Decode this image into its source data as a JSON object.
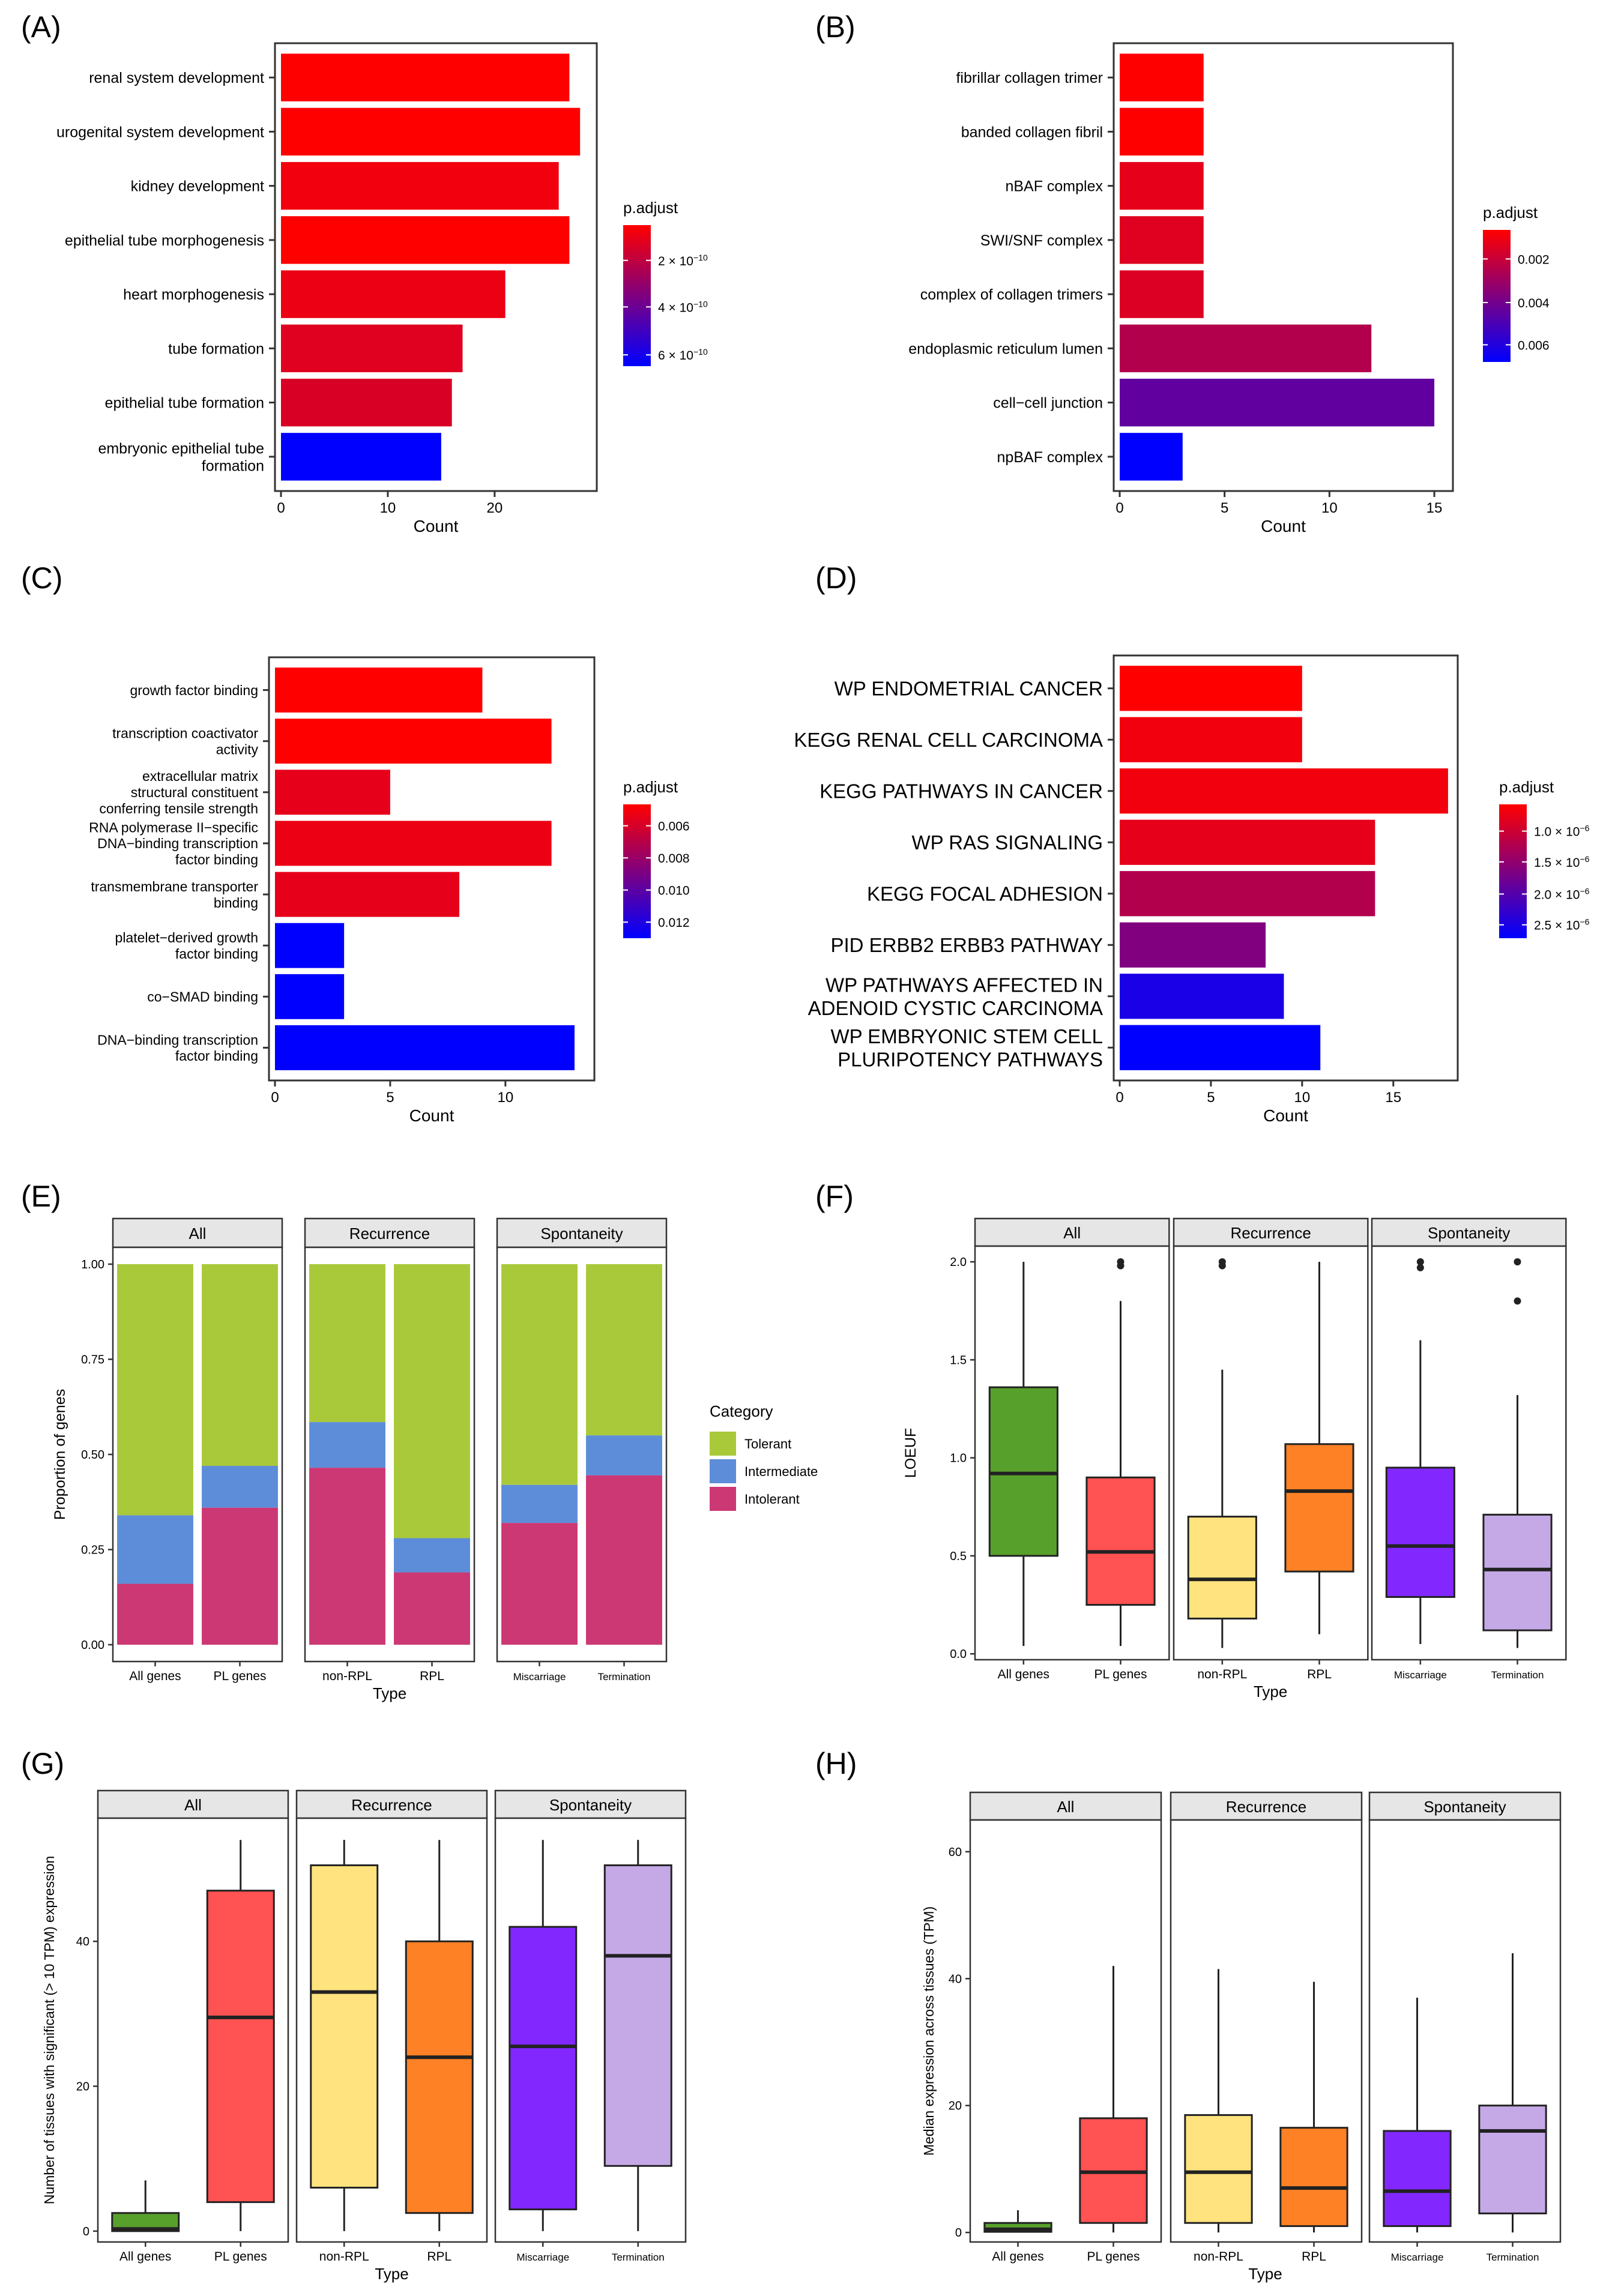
{
  "colors": {
    "grad_top": "#ff0000",
    "grad_bottom": "#0000ff",
    "tolerant": "#a9c93a",
    "intermediate": "#5d8dd8",
    "intolerant": "#cc3874",
    "all_genes": "#58a02c",
    "pl_genes": "#ff5252",
    "non_rpl": "#ffe37e",
    "rpl": "#ff8126",
    "miscarriage": "#8228ff",
    "termination": "#c5a9e7",
    "strip": "#e6e6e6",
    "axis": "#333333"
  },
  "chart_data": [
    {
      "id": "A",
      "panel_label": "(A)",
      "type": "bar",
      "orientation": "horizontal",
      "categories": [
        [
          "renal system development"
        ],
        [
          "urogenital system development"
        ],
        [
          "kidney development"
        ],
        [
          "epithelial tube morphogenesis"
        ],
        [
          "heart morphogenesis"
        ],
        [
          "tube formation"
        ],
        [
          "epithelial tube formation"
        ],
        [
          "embryonic epithelial tube",
          "formation"
        ]
      ],
      "values": [
        27,
        28,
        26,
        27,
        21,
        17,
        16,
        15
      ],
      "padj_color_frac": [
        0.0,
        0.0,
        0.05,
        0.0,
        0.08,
        0.12,
        0.15,
        1.0
      ],
      "xlim": [
        0,
        29
      ],
      "xticks": [
        0,
        10,
        20
      ],
      "xlabel": "Count",
      "legend": {
        "title": "p.adjust",
        "labels": [
          [
            "2 × 10",
            "−10"
          ],
          [
            "4 × 10",
            "−10"
          ],
          [
            "6 × 10",
            "−10"
          ]
        ],
        "label_frac": [
          0.25,
          0.58,
          0.92
        ]
      },
      "label_size": 25
    },
    {
      "id": "B",
      "panel_label": "(B)",
      "type": "bar",
      "orientation": "horizontal",
      "categories": [
        [
          "fibrillar collagen trimer"
        ],
        [
          "banded collagen fibril"
        ],
        [
          "nBAF complex"
        ],
        [
          "SWI/SNF complex"
        ],
        [
          "complex of collagen trimers"
        ],
        [
          "endoplasmic reticulum lumen"
        ],
        [
          "cell−cell junction"
        ],
        [
          "npBAF complex"
        ]
      ],
      "values": [
        4,
        4,
        4,
        4,
        4,
        12,
        15,
        3
      ],
      "padj_color_frac": [
        0.0,
        0.0,
        0.1,
        0.12,
        0.14,
        0.3,
        0.62,
        1.0
      ],
      "xlim": [
        0,
        15.6
      ],
      "xticks": [
        0,
        5,
        10,
        15
      ],
      "xlabel": "Count",
      "legend": {
        "title": "p.adjust",
        "labels": [
          [
            "0.002"
          ],
          [
            "0.004"
          ],
          [
            "0.006"
          ]
        ],
        "label_frac": [
          0.22,
          0.55,
          0.87
        ]
      },
      "label_size": 25
    },
    {
      "id": "C",
      "panel_label": "(C)",
      "type": "bar",
      "orientation": "horizontal",
      "categories": [
        [
          "growth factor binding"
        ],
        [
          "transcription coactivator",
          "activity"
        ],
        [
          "extracellular matrix",
          "structural constituent",
          "conferring tensile strength"
        ],
        [
          "RNA polymerase II−specific",
          "DNA−binding transcription",
          "factor binding"
        ],
        [
          "transmembrane transporter",
          "binding"
        ],
        [
          "platelet−derived growth",
          "factor binding"
        ],
        [
          "co−SMAD binding"
        ],
        [
          "DNA−binding transcription",
          "factor binding"
        ]
      ],
      "values": [
        9,
        12,
        5,
        12,
        8,
        3,
        3,
        13
      ],
      "padj_color_frac": [
        0.0,
        0.0,
        0.1,
        0.08,
        0.1,
        1.0,
        1.0,
        1.0
      ],
      "xlim": [
        0,
        13.6
      ],
      "xticks": [
        0,
        5,
        10
      ],
      "xlabel": "Count",
      "legend": {
        "title": "p.adjust",
        "labels": [
          [
            "0.006"
          ],
          [
            "0.008"
          ],
          [
            "0.010"
          ],
          [
            "0.012"
          ]
        ],
        "label_frac": [
          0.16,
          0.4,
          0.64,
          0.88
        ]
      },
      "label_size": 23
    },
    {
      "id": "D",
      "panel_label": "(D)",
      "type": "bar",
      "orientation": "horizontal",
      "categories": [
        [
          "WP ENDOMETRIAL CANCER"
        ],
        [
          "KEGG RENAL CELL CARCINOMA"
        ],
        [
          "KEGG PATHWAYS IN CANCER"
        ],
        [
          "WP RAS SIGNALING"
        ],
        [
          "KEGG FOCAL ADHESION"
        ],
        [
          "PID ERBB2 ERBB3 PATHWAY"
        ],
        [
          "WP PATHWAYS AFFECTED IN",
          "ADENOID CYSTIC CARCINOMA"
        ],
        [
          "WP EMBRYONIC STEM CELL",
          "PLURIPOTENCY PATHWAYS"
        ]
      ],
      "values": [
        10,
        10,
        18,
        14,
        14,
        8,
        9,
        11
      ],
      "padj_color_frac": [
        0.0,
        0.05,
        0.05,
        0.1,
        0.3,
        0.5,
        0.9,
        1.0
      ],
      "xlim": [
        0,
        18.2
      ],
      "xticks": [
        0,
        5,
        10,
        15
      ],
      "xlabel": "Count",
      "legend": {
        "title": "p.adjust",
        "labels": [
          [
            "1.0 × 10",
            "−6"
          ],
          [
            "1.5 × 10",
            "−6"
          ],
          [
            "2.0 × 10",
            "−6"
          ],
          [
            "2.5 × 10",
            "−6"
          ]
        ],
        "label_frac": [
          0.2,
          0.43,
          0.67,
          0.9
        ]
      },
      "label_size": 33
    },
    {
      "id": "E",
      "panel_label": "(E)",
      "type": "stacked_bar",
      "facets": [
        {
          "strip": "All",
          "groups": [
            "All genes",
            "PL genes"
          ],
          "intolerant": [
            0.16,
            0.36
          ],
          "intermediate": [
            0.18,
            0.11
          ]
        },
        {
          "strip": "Recurrence",
          "groups": [
            "non-RPL",
            "RPL"
          ],
          "intolerant": [
            0.465,
            0.19
          ],
          "intermediate": [
            0.12,
            0.09
          ]
        },
        {
          "strip": "Spontaneity",
          "groups": [
            "Miscarriage",
            "Termination"
          ],
          "intolerant": [
            0.32,
            0.445
          ],
          "intermediate": [
            0.1,
            0.105
          ]
        }
      ],
      "ylim": [
        0,
        1
      ],
      "yticks": [
        "0.00",
        "0.25",
        "0.50",
        "0.75",
        "1.00"
      ],
      "ylabel": "Proportion of genes",
      "xlabel": "Type",
      "legend": {
        "title": "Category",
        "items": [
          "Tolerant",
          "Intermediate",
          "Intolerant"
        ]
      }
    },
    {
      "id": "F",
      "panel_label": "(F)",
      "type": "boxplot",
      "facets": [
        {
          "strip": "All",
          "groups": [
            "All genes",
            "PL genes"
          ],
          "boxes": [
            {
              "min": 0.04,
              "q1": 0.5,
              "median": 0.92,
              "q3": 1.36,
              "max": 2.0,
              "outliers": []
            },
            {
              "min": 0.04,
              "q1": 0.25,
              "median": 0.52,
              "q3": 0.9,
              "max": 1.8,
              "outliers": [
                1.98,
                2.0
              ]
            }
          ]
        },
        {
          "strip": "Recurrence",
          "groups": [
            "non-RPL",
            "RPL"
          ],
          "boxes": [
            {
              "min": 0.03,
              "q1": 0.18,
              "median": 0.38,
              "q3": 0.7,
              "max": 1.45,
              "outliers": [
                1.98,
                2.0
              ]
            },
            {
              "min": 0.1,
              "q1": 0.42,
              "median": 0.83,
              "q3": 1.07,
              "max": 2.0,
              "outliers": []
            }
          ]
        },
        {
          "strip": "Spontaneity",
          "groups": [
            "Miscarriage",
            "Termination"
          ],
          "boxes": [
            {
              "min": 0.05,
              "q1": 0.29,
              "median": 0.55,
              "q3": 0.95,
              "max": 1.6,
              "outliers": [
                1.97,
                2.0
              ]
            },
            {
              "min": 0.03,
              "q1": 0.12,
              "median": 0.43,
              "q3": 0.71,
              "max": 1.32,
              "outliers": [
                1.8,
                2.0
              ]
            }
          ]
        }
      ],
      "ylim": [
        -0.03,
        2.08
      ],
      "yticks": [
        0.0,
        0.5,
        1.0,
        1.5,
        2.0
      ],
      "ytick_labels": [
        "0.0",
        "0.5",
        "1.0",
        "1.5",
        "2.0"
      ],
      "ylabel": "LOEUF",
      "xlabel": "Type"
    },
    {
      "id": "G",
      "panel_label": "(G)",
      "type": "boxplot",
      "facets": [
        {
          "strip": "All",
          "groups": [
            "All genes",
            "PL genes"
          ],
          "boxes": [
            {
              "min": 0,
              "q1": 0,
              "median": 0.3,
              "q3": 2.5,
              "max": 7,
              "outliers": []
            },
            {
              "min": 0,
              "q1": 4,
              "median": 29.5,
              "q3": 47,
              "max": 54,
              "outliers": []
            }
          ]
        },
        {
          "strip": "Recurrence",
          "groups": [
            "non-RPL",
            "RPL"
          ],
          "boxes": [
            {
              "min": 0,
              "q1": 6,
              "median": 33,
              "q3": 50.5,
              "max": 54,
              "outliers": []
            },
            {
              "min": 0,
              "q1": 2.5,
              "median": 24,
              "q3": 40,
              "max": 54,
              "outliers": []
            }
          ]
        },
        {
          "strip": "Spontaneity",
          "groups": [
            "Miscarriage",
            "Termination"
          ],
          "boxes": [
            {
              "min": 0,
              "q1": 3,
              "median": 25.5,
              "q3": 42,
              "max": 54,
              "outliers": []
            },
            {
              "min": 0,
              "q1": 9,
              "median": 38,
              "q3": 50.5,
              "max": 54,
              "outliers": []
            }
          ]
        }
      ],
      "ylim": [
        -1.5,
        57
      ],
      "yticks": [
        0,
        20,
        40
      ],
      "ytick_labels": [
        "0",
        "20",
        "40"
      ],
      "ylabel": "Number of tissues with significant (> 10 TPM) expression",
      "xlabel": "Type"
    },
    {
      "id": "H",
      "panel_label": "(H)",
      "type": "boxplot",
      "facets": [
        {
          "strip": "All",
          "groups": [
            "All genes",
            "PL genes"
          ],
          "boxes": [
            {
              "min": 0,
              "q1": 0.1,
              "median": 0.5,
              "q3": 1.5,
              "max": 3.5,
              "outliers": []
            },
            {
              "min": 0,
              "q1": 1.5,
              "median": 9.5,
              "q3": 18,
              "max": 42,
              "outliers": []
            }
          ]
        },
        {
          "strip": "Recurrence",
          "groups": [
            "non-RPL",
            "RPL"
          ],
          "boxes": [
            {
              "min": 0,
              "q1": 1.5,
              "median": 9.5,
              "q3": 18.5,
              "max": 41.5,
              "outliers": []
            },
            {
              "min": 0,
              "q1": 1,
              "median": 7,
              "q3": 16.5,
              "max": 39.5,
              "outliers": []
            }
          ]
        },
        {
          "strip": "Spontaneity",
          "groups": [
            "Miscarriage",
            "Termination"
          ],
          "boxes": [
            {
              "min": 0,
              "q1": 1,
              "median": 6.5,
              "q3": 16,
              "max": 37,
              "outliers": []
            },
            {
              "min": 0,
              "q1": 3,
              "median": 16,
              "q3": 20,
              "max": 44,
              "outliers": []
            }
          ]
        }
      ],
      "ylim": [
        -1.5,
        65
      ],
      "yticks": [
        0,
        20,
        40,
        60
      ],
      "ytick_labels": [
        "0",
        "20",
        "40",
        "60"
      ],
      "ylabel": "Median expression across tissues (TPM)",
      "xlabel": "Type"
    }
  ]
}
